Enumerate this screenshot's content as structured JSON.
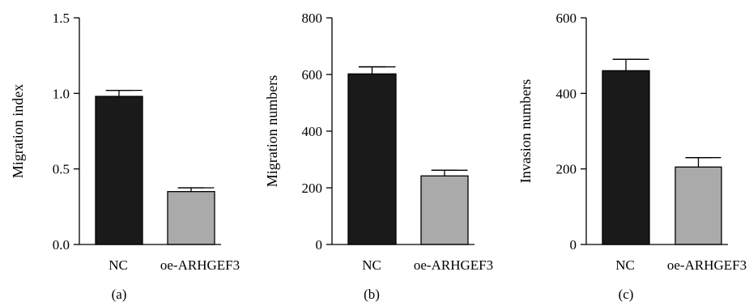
{
  "colors": {
    "nc": "#1a1a1a",
    "oe": "#aaaaaa",
    "axis": "#000000"
  },
  "chart_data": [
    {
      "type": "bar",
      "panel_label": "(a)",
      "categories": [
        "NC",
        "oe-ARHGEF3"
      ],
      "values": [
        0.98,
        0.35
      ],
      "errors": [
        0.04,
        0.025
      ],
      "ylabel": "Migration index",
      "ylim": [
        0,
        1.5
      ],
      "yticks": [
        0,
        0.5,
        1,
        1.5
      ],
      "ytick_labels": [
        "0.0",
        "0.5",
        "1.0",
        "1.5"
      ],
      "grid": false
    },
    {
      "type": "bar",
      "panel_label": "(b)",
      "categories": [
        "NC",
        "oe-ARHGEF3"
      ],
      "values": [
        602,
        242
      ],
      "errors": [
        25,
        20
      ],
      "ylabel": "Migration numbers",
      "ylim": [
        0,
        800
      ],
      "yticks": [
        0,
        200,
        400,
        600,
        800
      ],
      "ytick_labels": [
        "0",
        "200",
        "400",
        "600",
        "800"
      ],
      "grid": false
    },
    {
      "type": "bar",
      "panel_label": "(c)",
      "categories": [
        "NC",
        "oe-ARHGEF3"
      ],
      "values": [
        460,
        205
      ],
      "errors": [
        30,
        25
      ],
      "ylabel": "Invasion numbers",
      "ylim": [
        0,
        600
      ],
      "yticks": [
        0,
        200,
        400,
        600
      ],
      "ytick_labels": [
        "0",
        "200",
        "400",
        "600"
      ],
      "grid": false
    }
  ]
}
